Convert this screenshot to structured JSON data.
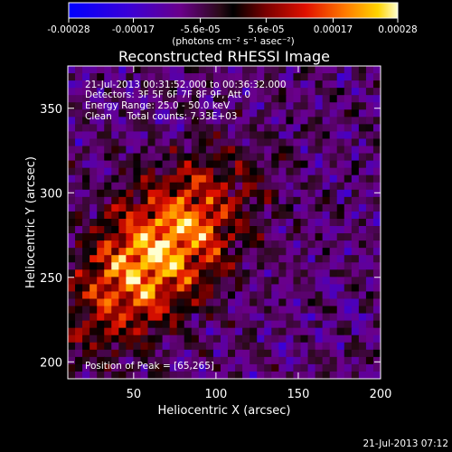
{
  "chart_data": {
    "type": "heatmap",
    "title": "Reconstructed RHESSI Image",
    "xlabel": "Heliocentric X (arcsec)",
    "ylabel": "Heliocentric Y (arcsec)",
    "xlim": [
      10,
      200
    ],
    "ylim": [
      190,
      375
    ],
    "x_ticks": [
      50,
      100,
      150,
      200
    ],
    "y_ticks": [
      200,
      250,
      300,
      350
    ],
    "colorbar": {
      "min": -0.00028,
      "max": 0.00028,
      "tick_values": [
        -0.00028,
        -0.00017,
        -5.6e-05,
        5.6e-05,
        0.00017,
        0.00028
      ],
      "tick_labels": [
        "-0.00028",
        "-0.00017",
        "-5.6e-05",
        "5.6e-05",
        "0.00017",
        "0.00028"
      ],
      "unit_label": "(photons cm⁻² s⁻¹ asec⁻²)"
    },
    "annotations": [
      "21-Jul-2013 00:31:52.000 to 00:36:32.000",
      "Detectors: 3F 5F 6F 7F 8F 9F, Att 0",
      "Energy Range: 25.0 - 50.0 keV",
      "Clean     Total counts: 7.33E+03",
      "Position of Peak = [65,265]"
    ],
    "peak": {
      "x": 65,
      "y": 265
    },
    "grid": false,
    "legend": "colorbar-top"
  },
  "footer_timestamp": "21-Jul-2013 07:12"
}
